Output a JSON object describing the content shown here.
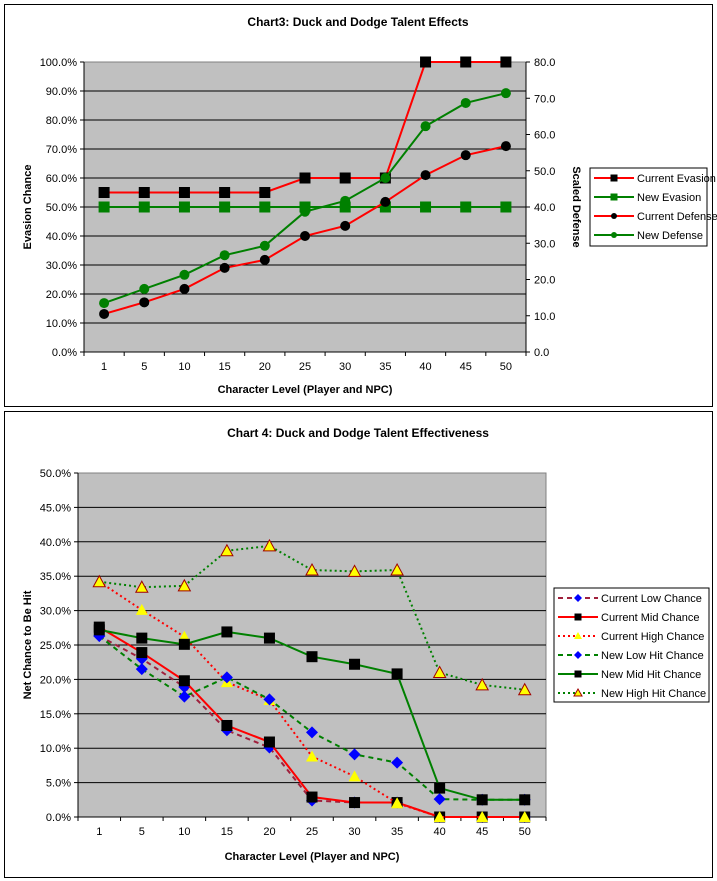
{
  "chart_data": [
    {
      "type": "line",
      "title": "Chart3: Duck and Dodge Talent Effects",
      "xlabel": "Character Level (Player and NPC)",
      "ylabel": "Evasion Chance",
      "y2label": "Scaled Defense",
      "categories": [
        "1",
        "5",
        "10",
        "15",
        "20",
        "25",
        "30",
        "35",
        "40",
        "45",
        "50"
      ],
      "ylim": [
        0,
        100
      ],
      "y_ticks": [
        "0.0%",
        "10.0%",
        "20.0%",
        "30.0%",
        "40.0%",
        "50.0%",
        "60.0%",
        "70.0%",
        "80.0%",
        "90.0%",
        "100.0%"
      ],
      "y2lim": [
        0,
        80
      ],
      "y2_ticks": [
        "0.0",
        "10.0",
        "20.0",
        "30.0",
        "40.0",
        "50.0",
        "60.0",
        "70.0",
        "80.0"
      ],
      "grid": true,
      "legend": "right",
      "series": [
        {
          "name": "Current Evasion",
          "axis": "left",
          "color": "#ff0000",
          "marker": "square",
          "marker_color": "#000000",
          "line": "solid",
          "values": [
            55,
            55,
            55,
            55,
            55,
            60,
            60,
            60,
            100,
            100,
            100
          ]
        },
        {
          "name": "New Evasion",
          "axis": "left",
          "color": "#008000",
          "marker": "square",
          "marker_color": "#008000",
          "line": "solid",
          "values": [
            50,
            50,
            50,
            50,
            50,
            50,
            50,
            50,
            50,
            50,
            50
          ]
        },
        {
          "name": "Current Defense",
          "axis": "right",
          "color": "#ff0000",
          "marker": "circle",
          "marker_color": "#000000",
          "line": "solid",
          "values": [
            10.5,
            13.7,
            17.4,
            23.2,
            25.4,
            32.0,
            34.8,
            41.4,
            48.8,
            54.3,
            56.8
          ]
        },
        {
          "name": "New Defense",
          "axis": "right",
          "color": "#008000",
          "marker": "circle",
          "marker_color": "#008000",
          "line": "solid",
          "values": [
            13.5,
            17.4,
            21.3,
            26.7,
            29.3,
            38.7,
            41.7,
            48.0,
            62.3,
            68.7,
            71.4
          ]
        }
      ]
    },
    {
      "type": "line",
      "title": "Chart 4: Duck and Dodge Talent Effectiveness",
      "xlabel": "Character Level (Player and NPC)",
      "ylabel": "Net Chance to Be Hit",
      "categories": [
        "1",
        "5",
        "10",
        "15",
        "20",
        "25",
        "30",
        "35",
        "40",
        "45",
        "50"
      ],
      "ylim": [
        0,
        50
      ],
      "y_ticks": [
        "0.0%",
        "5.0%",
        "10.0%",
        "15.0%",
        "20.0%",
        "25.0%",
        "30.0%",
        "35.0%",
        "40.0%",
        "45.0%",
        "50.0%"
      ],
      "grid": true,
      "legend": "right",
      "series": [
        {
          "name": "Current Low Chance",
          "color": "#a0203c",
          "marker": "diamond",
          "marker_color": "#0000ff",
          "line": "dashed",
          "values": [
            26.3,
            23.0,
            18.9,
            12.6,
            10.1,
            2.4,
            2.1,
            2.1,
            0,
            0,
            0
          ]
        },
        {
          "name": "Current Mid Chance",
          "color": "#ff0000",
          "marker": "square",
          "marker_color": "#000000",
          "line": "solid",
          "values": [
            27.6,
            23.9,
            19.8,
            13.3,
            10.9,
            2.9,
            2.1,
            2.1,
            0,
            0,
            0
          ]
        },
        {
          "name": "Current High Chance",
          "color": "#ff0000",
          "marker": "triangle",
          "marker_color": "#ffff00",
          "line": "dotted",
          "values": [
            34.2,
            30.1,
            26.2,
            19.6,
            17.0,
            8.8,
            5.9,
            2.0,
            0,
            0,
            0
          ]
        },
        {
          "name": "New Low Hit Chance",
          "color": "#008000",
          "marker": "diamond",
          "marker_color": "#0000ff",
          "line": "dashed",
          "values": [
            26.3,
            21.5,
            17.5,
            20.3,
            17.1,
            12.3,
            9.1,
            7.9,
            2.6,
            2.5,
            2.5
          ]
        },
        {
          "name": "New Mid Hit Chance",
          "color": "#008000",
          "marker": "square",
          "marker_color": "#000000",
          "line": "solid",
          "values": [
            27.2,
            26.0,
            25.1,
            26.9,
            26.0,
            23.3,
            22.2,
            20.8,
            4.2,
            2.5,
            2.5
          ]
        },
        {
          "name": "New High Hit Chance",
          "color": "#008000",
          "marker": "triangle",
          "marker_color": "#ffff00",
          "marker_stroke": "#a00000",
          "line": "dotted",
          "values": [
            34.2,
            33.4,
            33.6,
            38.7,
            39.4,
            35.9,
            35.7,
            35.9,
            21.0,
            19.2,
            18.5
          ]
        }
      ]
    }
  ]
}
